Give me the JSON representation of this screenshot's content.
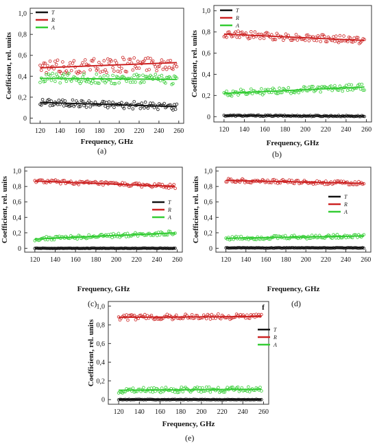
{
  "chart_data": [
    {
      "type": "scatter",
      "caption": "(a)",
      "xlabel": "Frequency, GHz",
      "ylabel": "Coefficient, rel. units",
      "xlim": [
        110,
        265
      ],
      "ylim": [
        -0.05,
        1.05
      ],
      "xticks": [
        "120",
        "140",
        "160",
        "180",
        "200",
        "220",
        "240",
        "260"
      ],
      "yticks": [
        "0",
        "0,2",
        "0,4",
        "0,6",
        "0,8",
        "1,0"
      ],
      "legend_position": "top-left",
      "series": [
        {
          "name": "T",
          "color": "#111111",
          "start": 0.15,
          "end": 0.11,
          "noise": 0.035
        },
        {
          "name": "R",
          "color": "#cc2222",
          "start": 0.48,
          "end": 0.53,
          "noise": 0.07
        },
        {
          "name": "A",
          "color": "#33cc33",
          "start": 0.38,
          "end": 0.37,
          "noise": 0.05
        }
      ]
    },
    {
      "type": "scatter",
      "caption": "(b)",
      "xlabel": "Frequency, GHz",
      "ylabel": "Coefficient, rel. units",
      "xlim": [
        110,
        265
      ],
      "ylim": [
        -0.05,
        1.05
      ],
      "xticks": [
        "120",
        "140",
        "160",
        "180",
        "200",
        "220",
        "240",
        "260"
      ],
      "yticks": [
        "0",
        "0,2",
        "0,4",
        "0,6",
        "0,8",
        "1,0"
      ],
      "legend_position": "top-left",
      "series": [
        {
          "name": "T",
          "color": "#111111",
          "start": 0.01,
          "end": 0.005,
          "noise": 0.006
        },
        {
          "name": "R",
          "color": "#cc2222",
          "start": 0.78,
          "end": 0.72,
          "noise": 0.035
        },
        {
          "name": "A",
          "color": "#33cc33",
          "start": 0.22,
          "end": 0.28,
          "noise": 0.03
        }
      ]
    },
    {
      "type": "scatter",
      "caption": "(c)",
      "xlabel": "Frequency, GHz",
      "ylabel": "Coefficient, rel. units",
      "xlim": [
        110,
        265
      ],
      "ylim": [
        -0.05,
        1.05
      ],
      "xticks": [
        "120",
        "140",
        "160",
        "180",
        "200",
        "220",
        "240",
        "260"
      ],
      "yticks": [
        "0",
        "0,2",
        "0,4",
        "0,6",
        "0,8",
        "1,0"
      ],
      "legend_position": "right",
      "series": [
        {
          "name": "T",
          "color": "#111111",
          "start": 0.0,
          "end": 0.0,
          "noise": 0.003
        },
        {
          "name": "R",
          "color": "#cc2222",
          "start": 0.87,
          "end": 0.8,
          "noise": 0.025
        },
        {
          "name": "A",
          "color": "#33cc33",
          "start": 0.12,
          "end": 0.2,
          "noise": 0.025
        }
      ]
    },
    {
      "type": "scatter",
      "caption": "(d)",
      "xlabel": "Frequency, GHz",
      "ylabel": "Coefficient, rel. units",
      "xlim": [
        110,
        265
      ],
      "ylim": [
        -0.05,
        1.05
      ],
      "xticks": [
        "120",
        "140",
        "160",
        "180",
        "200",
        "220",
        "240",
        "260"
      ],
      "yticks": [
        "0",
        "0,2",
        "0,4",
        "0,6",
        "0,8",
        "1,0"
      ],
      "legend_position": "right",
      "series": [
        {
          "name": "T",
          "color": "#111111",
          "start": 0.005,
          "end": 0.005,
          "noise": 0.004
        },
        {
          "name": "R",
          "color": "#cc2222",
          "start": 0.88,
          "end": 0.84,
          "noise": 0.025
        },
        {
          "name": "A",
          "color": "#33cc33",
          "start": 0.13,
          "end": 0.16,
          "noise": 0.025
        }
      ]
    },
    {
      "type": "scatter",
      "caption": "(e)",
      "corner_label": "f",
      "xlabel": "Frequency, GHz",
      "ylabel": "Coefficient, rel. units",
      "xlim": [
        110,
        265
      ],
      "ylim": [
        -0.05,
        1.05
      ],
      "xticks": [
        "120",
        "140",
        "160",
        "180",
        "200",
        "220",
        "240",
        "260"
      ],
      "yticks": [
        "0",
        "0,2",
        "0,4",
        "0,6",
        "0,8",
        "1,0"
      ],
      "legend_position": "right",
      "series": [
        {
          "name": "T",
          "color": "#111111",
          "start": 0.0,
          "end": 0.0,
          "noise": 0.003
        },
        {
          "name": "R",
          "color": "#cc2222",
          "start": 0.88,
          "end": 0.89,
          "noise": 0.03
        },
        {
          "name": "A",
          "color": "#33cc33",
          "start": 0.1,
          "end": 0.11,
          "noise": 0.03
        }
      ]
    }
  ]
}
